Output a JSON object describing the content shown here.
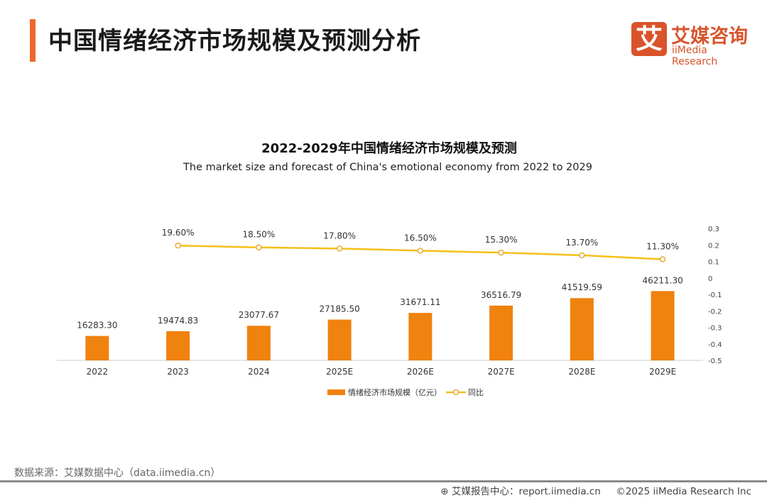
{
  "header": {
    "title": "中国情绪经济市场规模及预测分析",
    "logo_cn": "艾媒咨询",
    "logo_en": "iiMedia Research",
    "logo_mark": "艾"
  },
  "chart_data": {
    "type": "bar+line",
    "title": "2022-2029年中国情绪经济市场规模及预测",
    "subtitle": "The market size and forecast of China's emotional economy from 2022 to 2029",
    "categories": [
      "2022",
      "2023",
      "2024",
      "2025E",
      "2026E",
      "2027E",
      "2028E",
      "2029E"
    ],
    "series": [
      {
        "name": "情绪经济市场规模（亿元）",
        "type": "bar",
        "axis": "left",
        "color": "#f0820f",
        "values": [
          16283.3,
          19474.83,
          23077.67,
          27185.5,
          31671.11,
          36516.79,
          41519.59,
          46211.3
        ],
        "labels": [
          "16283.30",
          "19474.83",
          "23077.67",
          "27185.50",
          "31671.11",
          "36516.79",
          "41519.59",
          "46211.30"
        ]
      },
      {
        "name": "同比",
        "type": "line",
        "axis": "right",
        "color": "#f5c018",
        "values": [
          null,
          0.196,
          0.185,
          0.178,
          0.165,
          0.153,
          0.137,
          0.113
        ],
        "labels": [
          "",
          "19.60%",
          "18.50%",
          "17.80%",
          "16.50%",
          "15.30%",
          "13.70%",
          "11.30%"
        ]
      }
    ],
    "left_axis": {
      "visible": false,
      "ylim": [
        0,
        88000
      ]
    },
    "right_axis": {
      "ylim": [
        -0.5,
        0.3
      ],
      "ticks": [
        "0.3",
        "0.2",
        "0.1",
        "0",
        "-0.1",
        "-0.2",
        "-0.3",
        "-0.4",
        "-0.5"
      ]
    },
    "grid": false,
    "legend": "bottom"
  },
  "footer": {
    "source": "数据来源：艾媒数据中心（data.iimedia.cn）",
    "report": "艾媒报告中心：report.iimedia.cn",
    "copyright": "©2025  iiMedia Research  Inc"
  }
}
